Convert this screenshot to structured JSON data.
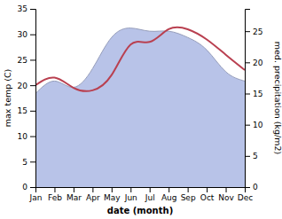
{
  "chart_data": {
    "type": "line",
    "categories": [
      "Jan",
      "Feb",
      "Mar",
      "Apr",
      "May",
      "Jun",
      "Jul",
      "Aug",
      "Sep",
      "Oct",
      "Nov",
      "Dec"
    ],
    "series": [
      {
        "name": "precipitation",
        "type": "area",
        "axis": "y2",
        "color": "#b8c3e8",
        "values": [
          15.0,
          17.0,
          16.0,
          19.0,
          24.0,
          25.5,
          25.0,
          25.0,
          24.0,
          22.0,
          18.5,
          17.0
        ]
      },
      {
        "name": "max temp",
        "type": "line",
        "color": "#b94050",
        "values": [
          20.0,
          21.5,
          19.5,
          19.0,
          22.0,
          28.0,
          28.5,
          31.0,
          31.0,
          29.0,
          26.0,
          23.0
        ]
      }
    ],
    "xlabel": "date (month)",
    "ylabel": "max temp (C)",
    "y2label": "med. precipitation (kg/m2)",
    "ylim": [
      0,
      35
    ],
    "yticks": [
      0,
      5,
      10,
      15,
      20,
      25,
      30,
      35
    ],
    "y2lim": [
      0,
      28.58
    ],
    "y2ticks": [
      0,
      5,
      10,
      15,
      20,
      25
    ],
    "grid": false
  }
}
